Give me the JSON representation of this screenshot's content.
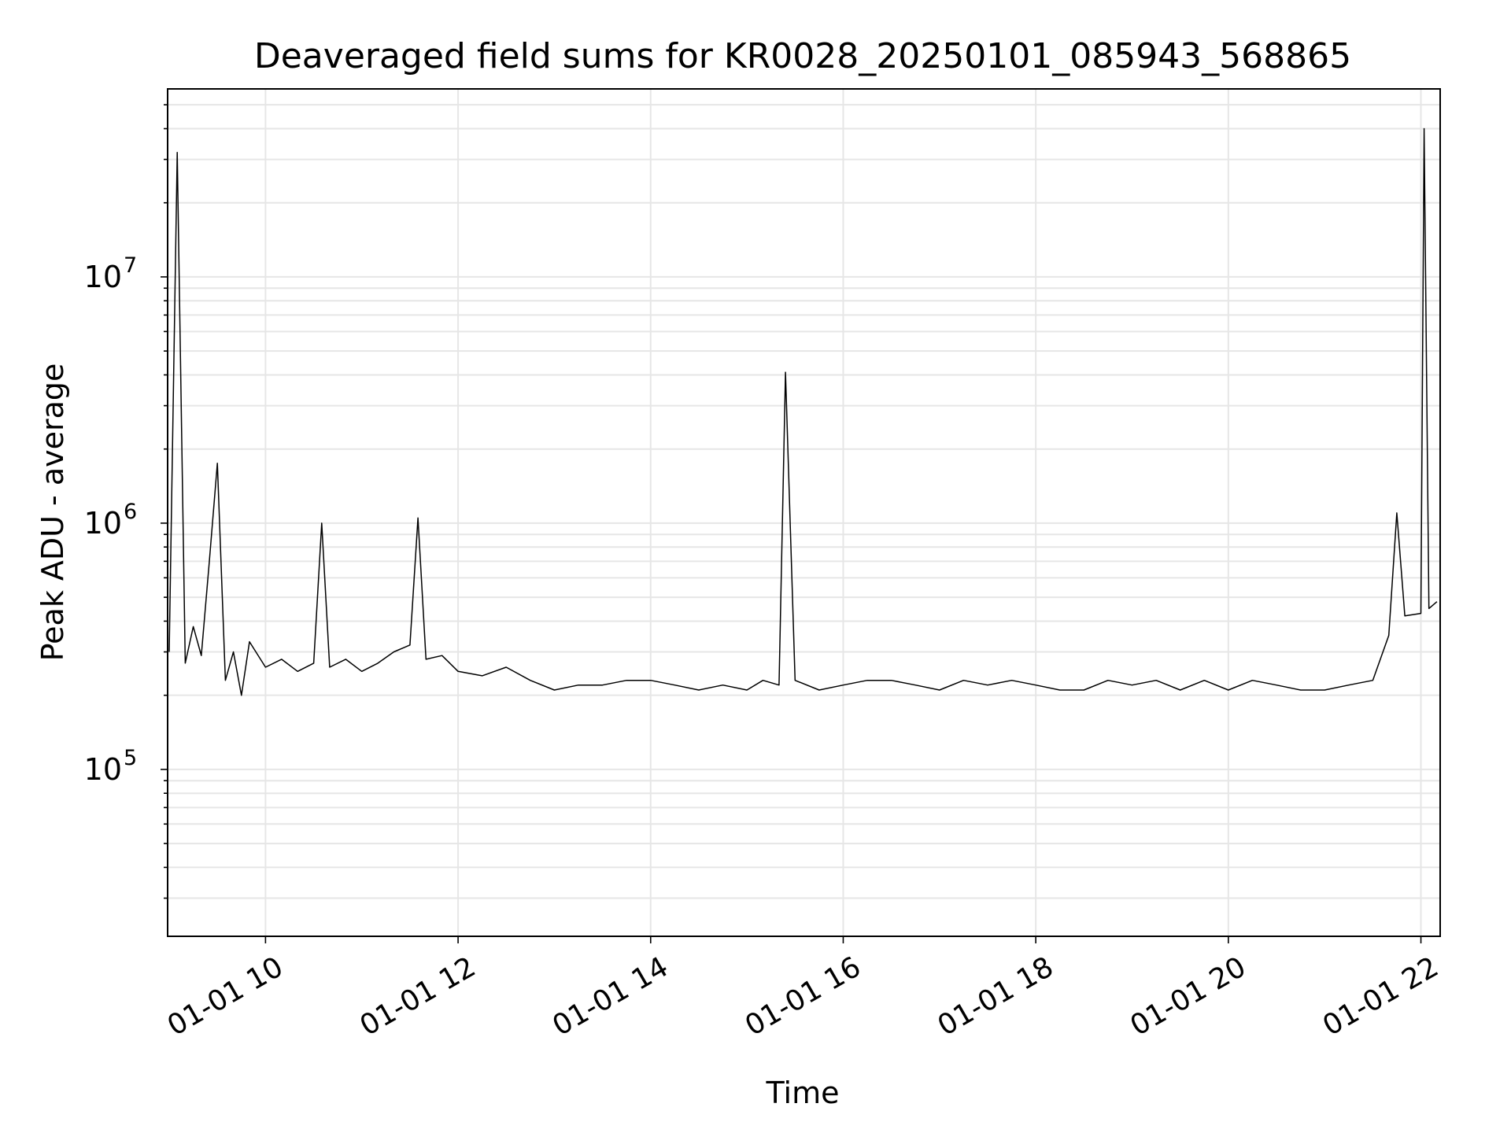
{
  "chart_data": {
    "type": "line",
    "title": "Deaveraged field sums for KR0028_20250101_085943_568865",
    "xlabel": "Time",
    "ylabel": "Peak ADU - average",
    "y_scale": "log",
    "grid": true,
    "grid_color": "#e6e6e6",
    "line_color": "#000000",
    "xlim": [
      "01-01 08:59",
      "01-01 22:12"
    ],
    "ylim": [
      21000,
      58000000
    ],
    "x_ticks": [
      {
        "time": "01-01 10:00",
        "label": "01-01 10"
      },
      {
        "time": "01-01 12:00",
        "label": "01-01 12"
      },
      {
        "time": "01-01 14:00",
        "label": "01-01 14"
      },
      {
        "time": "01-01 16:00",
        "label": "01-01 16"
      },
      {
        "time": "01-01 18:00",
        "label": "01-01 18"
      },
      {
        "time": "01-01 20:00",
        "label": "01-01 20"
      },
      {
        "time": "01-01 22:00",
        "label": "01-01 22"
      }
    ],
    "y_ticks": [
      {
        "value": 100000,
        "base": "10",
        "exp": "5"
      },
      {
        "value": 1000000,
        "base": "10",
        "exp": "6"
      },
      {
        "value": 10000000,
        "base": "10",
        "exp": "7"
      }
    ],
    "series": [
      {
        "name": "",
        "x": [
          "01-01 09:00",
          "01-01 09:05",
          "01-01 09:10",
          "01-01 09:15",
          "01-01 09:20",
          "01-01 09:25",
          "01-01 09:30",
          "01-01 09:35",
          "01-01 09:40",
          "01-01 09:45",
          "01-01 09:50",
          "01-01 10:00",
          "01-01 10:10",
          "01-01 10:20",
          "01-01 10:30",
          "01-01 10:35",
          "01-01 10:40",
          "01-01 10:50",
          "01-01 11:00",
          "01-01 11:10",
          "01-01 11:20",
          "01-01 11:30",
          "01-01 11:35",
          "01-01 11:40",
          "01-01 11:50",
          "01-01 12:00",
          "01-01 12:15",
          "01-01 12:30",
          "01-01 12:45",
          "01-01 13:00",
          "01-01 13:15",
          "01-01 13:30",
          "01-01 13:45",
          "01-01 14:00",
          "01-01 14:15",
          "01-01 14:30",
          "01-01 14:45",
          "01-01 15:00",
          "01-01 15:10",
          "01-01 15:20",
          "01-01 15:24",
          "01-01 15:30",
          "01-01 15:45",
          "01-01 16:00",
          "01-01 16:15",
          "01-01 16:30",
          "01-01 16:45",
          "01-01 17:00",
          "01-01 17:15",
          "01-01 17:30",
          "01-01 17:45",
          "01-01 18:00",
          "01-01 18:15",
          "01-01 18:30",
          "01-01 18:45",
          "01-01 19:00",
          "01-01 19:15",
          "01-01 19:30",
          "01-01 19:45",
          "01-01 20:00",
          "01-01 20:15",
          "01-01 20:30",
          "01-01 20:45",
          "01-01 21:00",
          "01-01 21:15",
          "01-01 21:30",
          "01-01 21:40",
          "01-01 21:45",
          "01-01 21:50",
          "01-01 22:00",
          "01-01 22:02",
          "01-01 22:05",
          "01-01 22:10"
        ],
        "y": [
          300000,
          32000000,
          270000,
          380000,
          290000,
          700000,
          1750000,
          230000,
          300000,
          200000,
          330000,
          260000,
          280000,
          250000,
          270000,
          1000000,
          260000,
          280000,
          250000,
          270000,
          300000,
          320000,
          1050000,
          280000,
          290000,
          250000,
          240000,
          260000,
          230000,
          210000,
          220000,
          220000,
          230000,
          230000,
          220000,
          210000,
          220000,
          210000,
          230000,
          220000,
          4100000,
          230000,
          210000,
          220000,
          230000,
          230000,
          220000,
          210000,
          230000,
          220000,
          230000,
          220000,
          210000,
          210000,
          230000,
          220000,
          230000,
          210000,
          230000,
          210000,
          230000,
          220000,
          210000,
          210000,
          220000,
          230000,
          350000,
          1100000,
          420000,
          430000,
          40000000,
          450000,
          480000
        ]
      }
    ]
  }
}
